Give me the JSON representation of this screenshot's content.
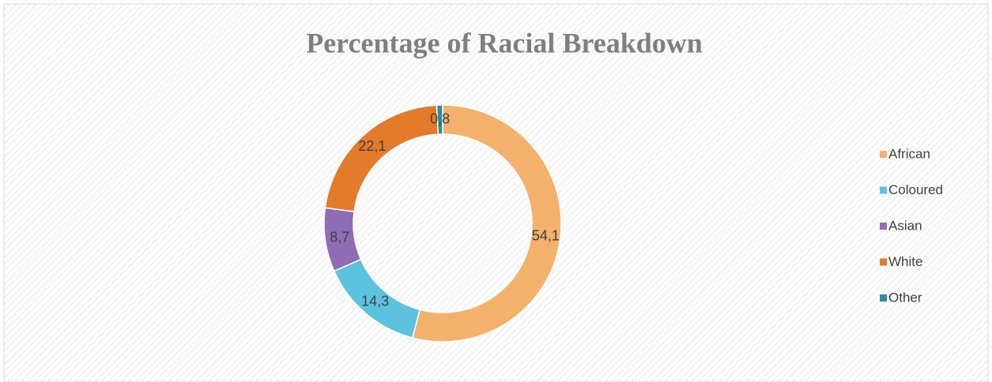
{
  "chart_data": {
    "type": "donut",
    "title": "Percentage of Racial Breakdown",
    "categories": [
      "African",
      "Coloured",
      "Asian",
      "White",
      "Other"
    ],
    "values": [
      54.1,
      14.3,
      8.7,
      22.1,
      0.8
    ],
    "value_labels": [
      "54,1",
      "14,3",
      "8,7",
      "22,1",
      "0,8"
    ],
    "colors": [
      "#f4b16c",
      "#5cc3df",
      "#8f6cb5",
      "#e37b2b",
      "#2f8ba2"
    ],
    "legend": "right"
  }
}
